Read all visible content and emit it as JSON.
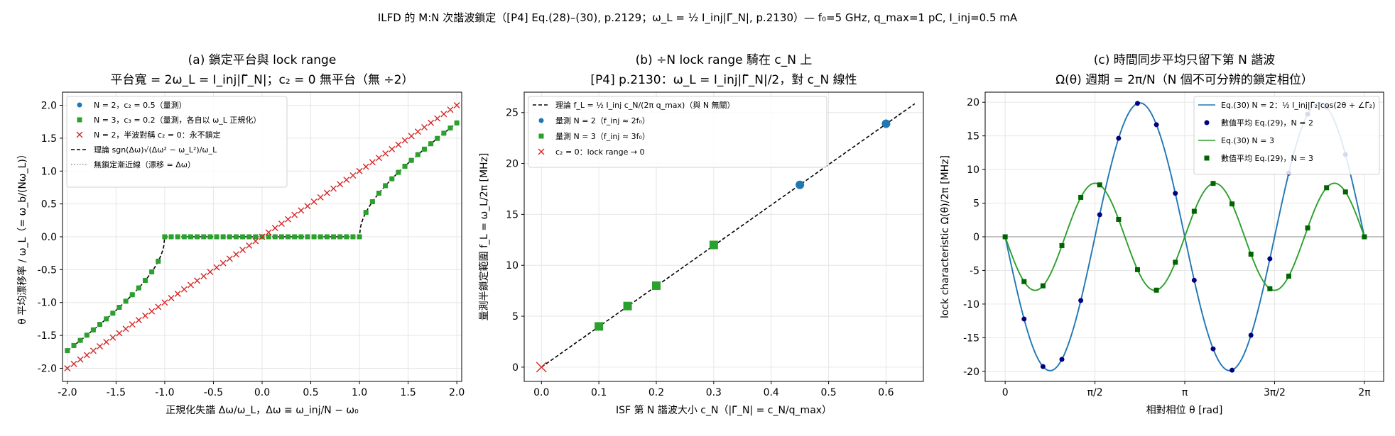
{
  "figure": {
    "suptitle": "ILFD 的 M:N 次諧波鎖定（[P4] Eq.(28)–(30), p.2129；ω_L = ½ I_inj|Γ̃_N|, p.2130）— f₀=5 GHz, q_max=1 pC, I_inj=0.5 mA"
  },
  "chart_data": [
    {
      "type": "scatter",
      "title_line1": "(a) 鎖定平台與 lock range",
      "title_line2": "平台寬 = 2ω_L = I_inj|Γ̃_N|；c₂ = 0 無平台（無 ÷2）",
      "xlabel": "正規化失諧 Δω/ω_L，Δω ≡ ω_inj/N − ω₀",
      "ylabel": "θ 平均漂移率 / ω_L（= ω_b/(Nω_L)）",
      "xlim": [
        -2.05,
        2.05
      ],
      "ylim": [
        -2.2,
        2.2
      ],
      "xticks": [
        -2.0,
        -1.5,
        -1.0,
        -0.5,
        0.0,
        0.5,
        1.0,
        1.5,
        2.0
      ],
      "xtick_labels": [
        "-2.0",
        "-1.5",
        "-1.0",
        "-0.5",
        "0.0",
        "0.5",
        "1.0",
        "1.5",
        "2.0"
      ],
      "yticks": [
        -2.0,
        -1.5,
        -1.0,
        -0.5,
        0.0,
        0.5,
        1.0,
        1.5,
        2.0
      ],
      "ytick_labels": [
        "-2.0",
        "-1.5",
        "-1.0",
        "-0.5",
        "0.0",
        "0.5",
        "1.0",
        "1.5",
        "2.0"
      ],
      "grid": true,
      "legend_position": "top-left",
      "series": [
        {
          "name": "N = 2，c₂ = 0.5（量測）",
          "marker": "circle",
          "color": "#1f77b4",
          "relation": "sgn(x)·sqrt(x²−1), 0 for |x|<1",
          "x_start": -2.0,
          "x_end": 2.0,
          "n": 61
        },
        {
          "name": "N = 3，c₃ = 0.2（量測，各自以 ω_L 正規化）",
          "marker": "square",
          "color": "#2ca02c",
          "relation": "sgn(x)·sqrt(x²−1), 0 for |x|<1",
          "x_start": -2.0,
          "x_end": 2.0,
          "n": 61
        },
        {
          "name": "N = 2，半波對稱 c₂ = 0：永不鎖定",
          "marker": "x",
          "color": "#d62728",
          "relation": "y = x",
          "x_start": -2.0,
          "x_end": 2.0,
          "n": 61
        },
        {
          "name": "理論 sgn(Δω)√(Δω² − ω_L²)/ω_L",
          "line": "dashed",
          "color": "#000000"
        },
        {
          "name": "無鎖定漸近線（漂移 = Δω）",
          "line": "dotted",
          "color": "#888888"
        }
      ]
    },
    {
      "type": "scatter",
      "title_line1": "(b) ÷N lock range 騎在 c_N 上",
      "title_line2": "[P4] p.2130：ω_L = I_inj|Γ̃_N|/2，對 c_N 線性",
      "xlabel": "ISF 第 N 諧波大小 c_N（|Γ̃_N| = c_N/q_max）",
      "ylabel": "量測半鎖定範圍 f_L = ω_L/2π [MHz]",
      "xlim": [
        -0.03,
        0.665
      ],
      "ylim": [
        -1.4,
        27.0
      ],
      "xticks": [
        0.0,
        0.1,
        0.2,
        0.3,
        0.4,
        0.5,
        0.6
      ],
      "xtick_labels": [
        "0.0",
        "0.1",
        "0.2",
        "0.3",
        "0.4",
        "0.5",
        "0.6"
      ],
      "yticks": [
        0,
        5,
        10,
        15,
        20,
        25
      ],
      "ytick_labels": [
        "0",
        "5",
        "10",
        "15",
        "20",
        "25"
      ],
      "grid": true,
      "legend_position": "top-left",
      "series": [
        {
          "name": "理論 f_L = ½ I_inj c_N/(2π q_max)（與 N 無關）",
          "line": "dashed",
          "color": "#000000",
          "x": [
            0.0,
            0.65
          ],
          "y": [
            0.0,
            25.86
          ]
        },
        {
          "name": "量測 N = 2（f_inj ≈ 2f₀）",
          "marker": "circle",
          "color": "#1f77b4",
          "x": [
            0.45,
            0.6
          ],
          "y": [
            17.9,
            23.9
          ]
        },
        {
          "name": "量測 N = 3（f_inj ≈ 3f₀）",
          "marker": "square",
          "color": "#2ca02c",
          "x": [
            0.1,
            0.15,
            0.2,
            0.3
          ],
          "y": [
            4.0,
            6.0,
            8.0,
            12.0
          ]
        },
        {
          "name": "c₂ = 0：lock range → 0",
          "marker": "x",
          "color": "#d62728",
          "x": [
            0.0
          ],
          "y": [
            0.0
          ]
        }
      ]
    },
    {
      "type": "line",
      "title_line1": "(c) 時間同步平均只留下第 N 諧波",
      "title_line2": "Ω(θ) 週期 = 2π/N（N 個不可分辨的鎖定相位）",
      "xlabel": "相對相位 θ [rad]",
      "ylabel": "lock characteristic Ω(θ)/2π [MHz]",
      "xlim": [
        -0.35,
        6.62
      ],
      "ylim": [
        -21.5,
        21.5
      ],
      "xticks": [
        0,
        1.5708,
        3.1416,
        4.7124,
        6.2832
      ],
      "xtick_labels": [
        "0",
        "π/2",
        "π",
        "3π/2",
        "2π"
      ],
      "yticks": [
        -20,
        -15,
        -10,
        -5,
        0,
        5,
        10,
        15,
        20
      ],
      "ytick_labels": [
        "-20",
        "-15",
        "-10",
        "-5",
        "0",
        "5",
        "10",
        "15",
        "20"
      ],
      "grid": true,
      "legend_position": "top-right",
      "series": [
        {
          "name": "Eq.(30) N = 2：½ I_inj|Γ̃₂|cos(2θ + ∠Γ̃₂)",
          "line": "solid",
          "color": "#1f77b4",
          "relation": "-19.9·sin(2θ)"
        },
        {
          "name": "數值平均 Eq.(29)，N = 2",
          "marker": "circle",
          "color": "#000080",
          "theta_start": 0.0,
          "theta_step": 0.3307,
          "n": 20,
          "relation": "-19.9·sin(2θ)"
        },
        {
          "name": "Eq.(30) N = 3",
          "line": "solid",
          "color": "#2ca02c",
          "relation": "-7.96·sin(3θ)"
        },
        {
          "name": "數值平均 Eq.(29)，N = 3",
          "marker": "square",
          "color": "#006400",
          "theta_start": 0.0,
          "theta_step": 0.3307,
          "n": 20,
          "relation": "-7.96·sin(3θ)"
        }
      ]
    }
  ]
}
